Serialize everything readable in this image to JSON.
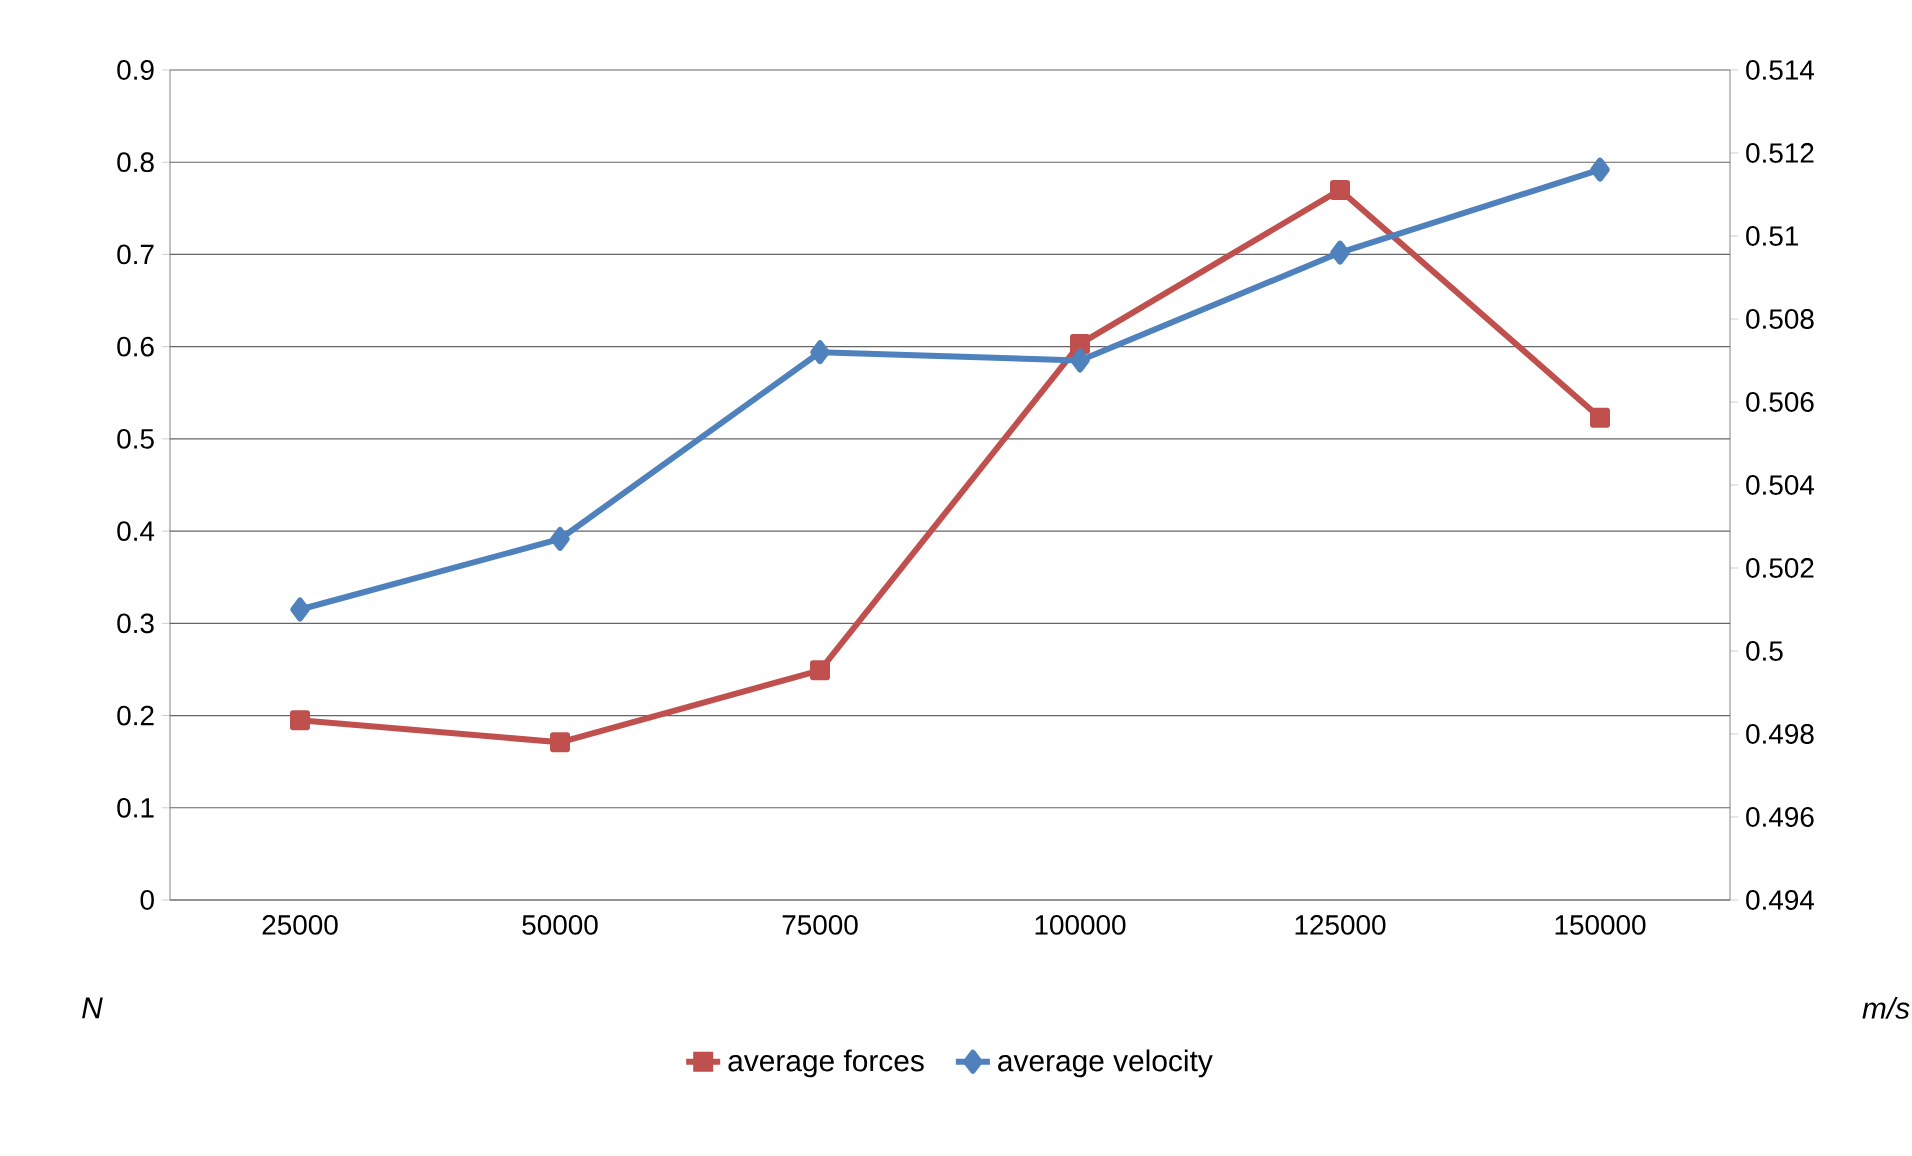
{
  "chart_data": {
    "type": "line",
    "categories": [
      "25000",
      "50000",
      "75000",
      "100000",
      "125000",
      "150000"
    ],
    "series": [
      {
        "name": "average forces",
        "color": "#c0504d",
        "marker": "square",
        "values": [
          0.195,
          0.171,
          0.249,
          0.603,
          0.77,
          0.523
        ]
      },
      {
        "name": "average velocity",
        "color": "#4f81bd",
        "marker": "diamond",
        "axis": "y2",
        "values": [
          0.501,
          0.5027,
          0.5072,
          0.507,
          0.5096,
          0.5116
        ]
      }
    ],
    "ylabel": "N",
    "y2label": "m/s",
    "ylim": [
      0,
      0.9
    ],
    "yticks": [
      0,
      0.1,
      0.2,
      0.3,
      0.4,
      0.5,
      0.6,
      0.7,
      0.8,
      0.9
    ],
    "y2lim": [
      0.494,
      0.514
    ],
    "y2ticks": [
      0.494,
      0.496,
      0.498,
      0.5,
      0.502,
      0.504,
      0.506,
      0.508,
      0.51,
      0.512,
      0.514
    ],
    "grid": "y",
    "legend": "bottom"
  }
}
